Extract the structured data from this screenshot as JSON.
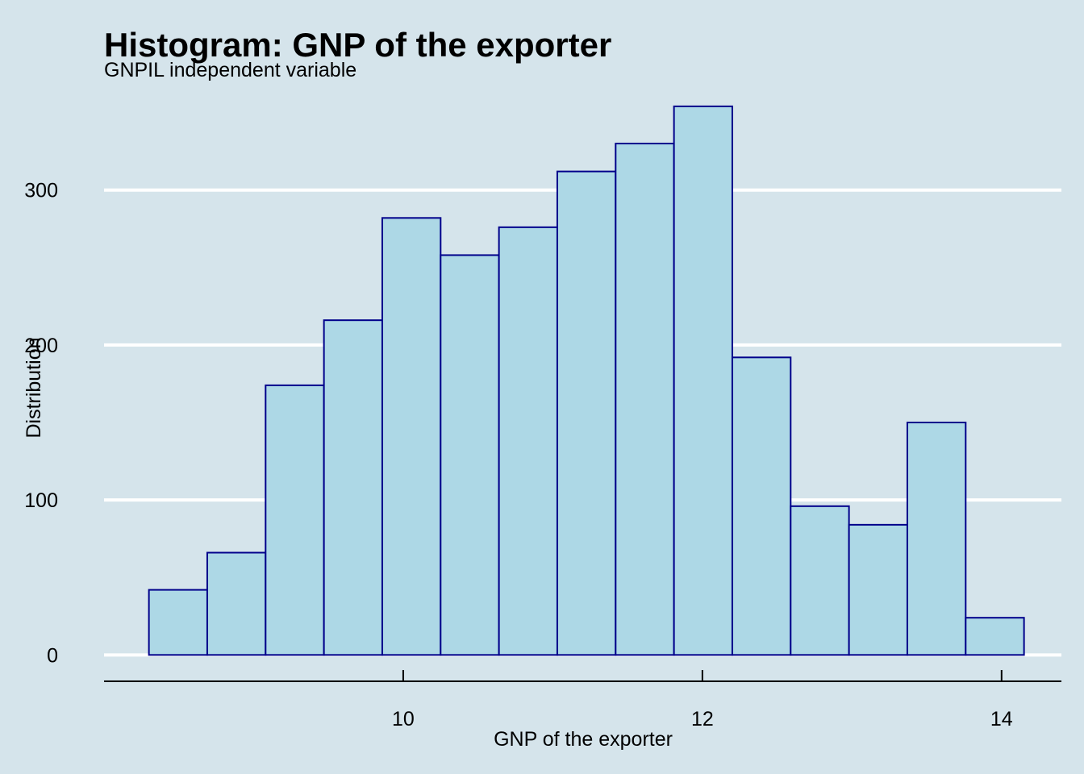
{
  "chart_data": {
    "type": "bar",
    "title": "Histogram: GNP of the exporter",
    "subtitle": "GNPIL independent variable",
    "xlabel": "GNP of the exporter",
    "ylabel": "Distribution",
    "bin_edges": [
      8.3,
      8.69,
      9.08,
      9.47,
      9.86,
      10.25,
      10.64,
      11.03,
      11.42,
      11.81,
      12.2,
      12.59,
      12.98,
      13.37,
      13.76,
      14.15
    ],
    "values": [
      42,
      66,
      174,
      216,
      282,
      258,
      276,
      312,
      330,
      354,
      192,
      96,
      84,
      150,
      24
    ],
    "xlim": [
      8.0,
      14.4
    ],
    "ylim": [
      -17,
      355
    ],
    "x_ticks": [
      10,
      12,
      14
    ],
    "x_tick_labels": [
      "10",
      "12",
      "14"
    ],
    "y_ticks": [
      0,
      100,
      200,
      300
    ],
    "y_tick_labels": [
      "0",
      "100",
      "200",
      "300"
    ],
    "grid": "horizontal-major",
    "colors": {
      "background": "#d5e4eb",
      "bar_fill": "#add8e6",
      "bar_stroke": "#00008b",
      "grid": "#ffffff",
      "axis_line": "#000000",
      "text": "#000000"
    }
  }
}
